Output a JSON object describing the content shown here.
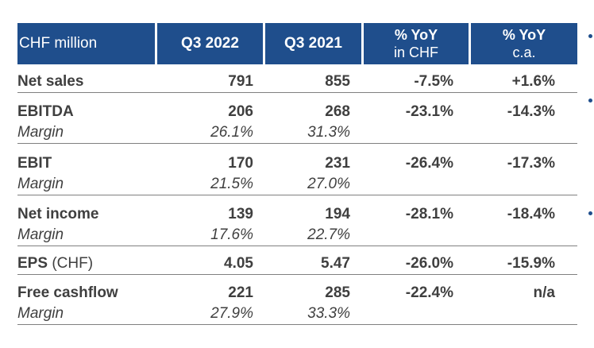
{
  "header": {
    "label": "CHF million",
    "col1": "Q3 2022",
    "col2": "Q3 2021",
    "col3_line1": "% YoY",
    "col3_line2": "in CHF",
    "col4_line1": "% YoY",
    "col4_line2": "c.a."
  },
  "rows": [
    {
      "label": "Net sales",
      "q3_2022": "791",
      "q3_2021": "855",
      "yoy_chf": "-7.5%",
      "yoy_ca": "+1.6%"
    },
    {
      "label": "EBITDA",
      "q3_2022": "206",
      "q3_2021": "268",
      "yoy_chf": "-23.1%",
      "yoy_ca": "-14.3%",
      "margin_label": "Margin",
      "margin_2022": "26.1%",
      "margin_2021": "31.3%"
    },
    {
      "label": "EBIT",
      "q3_2022": "170",
      "q3_2021": "231",
      "yoy_chf": "-26.4%",
      "yoy_ca": "-17.3%",
      "margin_label": "Margin",
      "margin_2022": "21.5%",
      "margin_2021": "27.0%"
    },
    {
      "label": "Net income",
      "q3_2022": "139",
      "q3_2021": "194",
      "yoy_chf": "-28.1%",
      "yoy_ca": "-18.4%",
      "margin_label": "Margin",
      "margin_2022": "17.6%",
      "margin_2021": "22.7%"
    },
    {
      "label": "EPS",
      "unit": "(CHF)",
      "q3_2022": "4.05",
      "q3_2021": "5.47",
      "yoy_chf": "-26.0%",
      "yoy_ca": "-15.9%"
    },
    {
      "label": "Free cashflow",
      "q3_2022": "221",
      "q3_2021": "285",
      "yoy_chf": "-22.4%",
      "yoy_ca": "n/a",
      "margin_label": "Margin",
      "margin_2022": "27.9%",
      "margin_2021": "33.3%"
    }
  ],
  "colors": {
    "header_bg": "#1f4e8c",
    "text": "#3f3f3f",
    "rule": "#808080"
  }
}
